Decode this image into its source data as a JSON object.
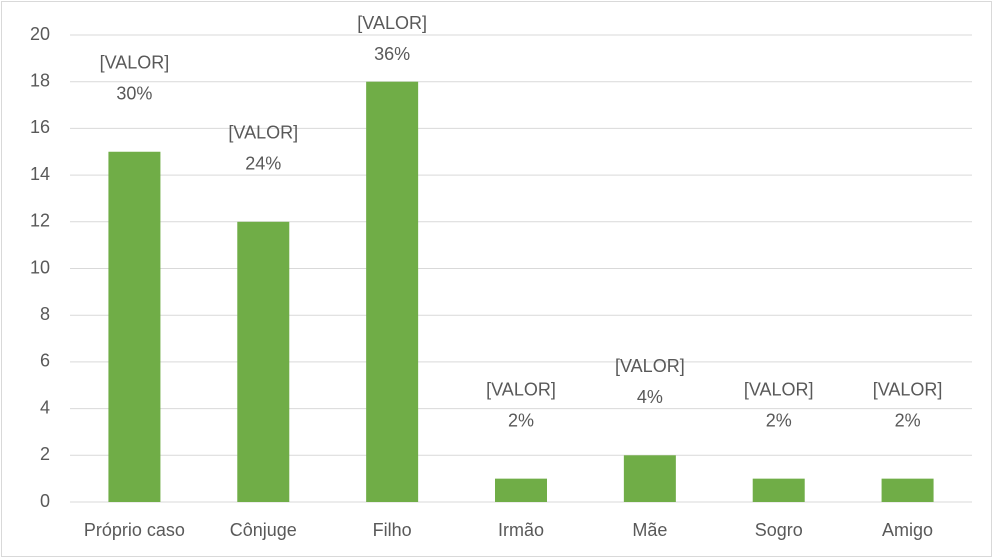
{
  "chart_data": {
    "type": "bar",
    "categories": [
      "Próprio caso",
      "Cônjuge",
      "Filho",
      "Irmão",
      "Mãe",
      "Sogro",
      "Amigo"
    ],
    "values": [
      15,
      12,
      18,
      1,
      2,
      1,
      1
    ],
    "value_labels": [
      "[VALOR]",
      "[VALOR]",
      "[VALOR]",
      "[VALOR]",
      "[VALOR]",
      "[VALOR]",
      "[VALOR]"
    ],
    "percent_labels": [
      "30%",
      "24%",
      "36%",
      "2%",
      "4%",
      "2%",
      "2%"
    ],
    "color": "#70ad47",
    "ylim": [
      0,
      20
    ],
    "yticks": [
      0,
      2,
      4,
      6,
      8,
      10,
      12,
      14,
      16,
      18,
      20
    ],
    "grid": true
  }
}
